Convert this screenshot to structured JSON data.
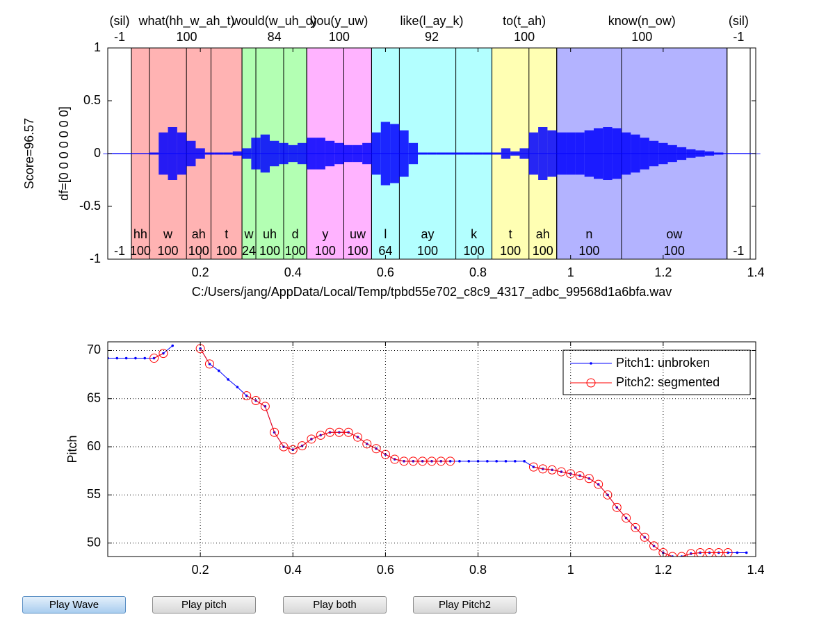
{
  "chart_data": [
    {
      "type": "waveform",
      "ylabel": "Score=96.57",
      "ylabel2": "df=[0 0 0 0 0 0 0]",
      "xlabel": "C:/Users/jang/AppData/Local/Temp/tpbd55e702_c8c9_4317_adbc_99568d1a6bfa.wav",
      "xlim": [
        0,
        1.4
      ],
      "ylim": [
        -1,
        1
      ],
      "xticks": [
        0.2,
        0.4,
        0.6,
        0.8,
        1,
        1.2,
        1.4
      ],
      "yticks": [
        -1,
        -0.5,
        0,
        0.5,
        1
      ],
      "color": "#0000ff",
      "words": [
        {
          "label": "(sil)",
          "score": -1,
          "start": 0,
          "end": 0.051,
          "color": "#ffffff"
        },
        {
          "label": "what(hh_w_ah_t)",
          "score": 100,
          "start": 0.051,
          "end": 0.29,
          "color": "#ffb3b3"
        },
        {
          "label": "would(w_uh_d)",
          "score": 84,
          "start": 0.29,
          "end": 0.43,
          "color": "#b3ffb3"
        },
        {
          "label": "you(y_uw)",
          "score": 100,
          "start": 0.43,
          "end": 0.57,
          "color": "#ffb3ff"
        },
        {
          "label": "like(l_ay_k)",
          "score": 92,
          "start": 0.57,
          "end": 0.83,
          "color": "#b3ffff"
        },
        {
          "label": "to(t_ah)",
          "score": 100,
          "start": 0.83,
          "end": 0.97,
          "color": "#ffffb3"
        },
        {
          "label": "know(n_ow)",
          "score": 100,
          "start": 0.97,
          "end": 1.338,
          "color": "#b3b3ff"
        },
        {
          "label": "(sil)",
          "score": -1,
          "start": 1.338,
          "end": 1.388,
          "color": "#ffffff"
        }
      ],
      "phones": [
        {
          "label": null,
          "score": -1,
          "start": 0,
          "end": 0.051
        },
        {
          "label": "hh",
          "score": 100,
          "start": 0.051,
          "end": 0.09
        },
        {
          "label": "w",
          "score": 100,
          "start": 0.09,
          "end": 0.17
        },
        {
          "label": "ah",
          "score": 100,
          "start": 0.17,
          "end": 0.223
        },
        {
          "label": "t",
          "score": 100,
          "start": 0.223,
          "end": 0.29
        },
        {
          "label": "w",
          "score": 24,
          "start": 0.29,
          "end": 0.32
        },
        {
          "label": "uh",
          "score": 100,
          "start": 0.32,
          "end": 0.38
        },
        {
          "label": "d",
          "score": 100,
          "start": 0.38,
          "end": 0.43
        },
        {
          "label": "y",
          "score": 100,
          "start": 0.43,
          "end": 0.51
        },
        {
          "label": "uw",
          "score": 100,
          "start": 0.51,
          "end": 0.57
        },
        {
          "label": "l",
          "score": 64,
          "start": 0.57,
          "end": 0.63
        },
        {
          "label": "ay",
          "score": 100,
          "start": 0.63,
          "end": 0.752
        },
        {
          "label": "k",
          "score": 100,
          "start": 0.752,
          "end": 0.83
        },
        {
          "label": "t",
          "score": 100,
          "start": 0.83,
          "end": 0.91
        },
        {
          "label": "ah",
          "score": 100,
          "start": 0.91,
          "end": 0.97
        },
        {
          "label": "n",
          "score": 100,
          "start": 0.97,
          "end": 1.11
        },
        {
          "label": "ow",
          "score": 100,
          "start": 1.11,
          "end": 1.338
        },
        {
          "label": null,
          "score": -1,
          "start": 1.338,
          "end": 1.388
        }
      ],
      "x": [
        0,
        0.02,
        0.04,
        0.06,
        0.08,
        0.1,
        0.12,
        0.14,
        0.16,
        0.18,
        0.2,
        0.22,
        0.24,
        0.26,
        0.28,
        0.3,
        0.32,
        0.34,
        0.36,
        0.38,
        0.4,
        0.42,
        0.44,
        0.46,
        0.48,
        0.5,
        0.52,
        0.54,
        0.56,
        0.58,
        0.6,
        0.62,
        0.64,
        0.66,
        0.68,
        0.7,
        0.72,
        0.74,
        0.76,
        0.78,
        0.8,
        0.82,
        0.84,
        0.86,
        0.88,
        0.9,
        0.92,
        0.94,
        0.96,
        0.98,
        1,
        1.02,
        1.04,
        1.06,
        1.08,
        1.1,
        1.12,
        1.14,
        1.16,
        1.18,
        1.2,
        1.22,
        1.24,
        1.26,
        1.28,
        1.3,
        1.32,
        1.34,
        1.36,
        1.38,
        1.4
      ],
      "values": [
        0,
        0,
        0,
        0,
        0,
        0.01,
        0.2,
        0.25,
        0.2,
        0.12,
        0.05,
        0.01,
        0.01,
        0.01,
        0.02,
        0.05,
        0.15,
        0.18,
        0.12,
        0.1,
        0.08,
        0.1,
        0.15,
        0.15,
        0.12,
        0.1,
        0.08,
        0.08,
        0.1,
        0.2,
        0.3,
        0.28,
        0.22,
        0.1,
        0.01,
        0.01,
        0.01,
        0.01,
        0.01,
        0.01,
        0.01,
        0.01,
        0.01,
        0.05,
        0.02,
        0.05,
        0.2,
        0.25,
        0.22,
        0.2,
        0.2,
        0.2,
        0.22,
        0.24,
        0.25,
        0.24,
        0.2,
        0.18,
        0.15,
        0.12,
        0.1,
        0.08,
        0.06,
        0.04,
        0.03,
        0.02,
        0.01,
        0,
        0,
        0,
        0
      ]
    },
    {
      "type": "line",
      "ylabel": "Pitch",
      "xlim": [
        0,
        1.4
      ],
      "ylim": [
        48.6,
        70.9
      ],
      "xticks": [
        0.2,
        0.4,
        0.6,
        0.8,
        1,
        1.2,
        1.4
      ],
      "yticks": [
        50,
        55,
        60,
        65,
        70
      ],
      "grid": true,
      "legend": "northeast",
      "x": [
        0,
        0.02,
        0.04,
        0.06,
        0.08,
        0.1,
        0.12,
        0.14,
        0.16,
        0.18,
        0.2,
        0.22,
        0.24,
        0.26,
        0.28,
        0.3,
        0.32,
        0.34,
        0.36,
        0.38,
        0.4,
        0.42,
        0.44,
        0.46,
        0.48,
        0.5,
        0.52,
        0.54,
        0.56,
        0.58,
        0.6,
        0.62,
        0.64,
        0.66,
        0.68,
        0.7,
        0.72,
        0.74,
        0.76,
        0.78,
        0.8,
        0.82,
        0.84,
        0.86,
        0.88,
        0.9,
        0.92,
        0.94,
        0.96,
        0.98,
        1,
        1.02,
        1.04,
        1.06,
        1.08,
        1.1,
        1.12,
        1.14,
        1.16,
        1.18,
        1.2,
        1.22,
        1.24,
        1.26,
        1.28,
        1.3,
        1.32,
        1.34,
        1.36,
        1.38
      ],
      "series": [
        {
          "name": "Pitch1: unbroken",
          "color": "#0000ff",
          "marker": "dot",
          "values": [
            69.2,
            69.2,
            69.2,
            69.2,
            69.2,
            69.2,
            69.7,
            70.5,
            null,
            null,
            70.2,
            68.6,
            67.9,
            67.0,
            66.2,
            65.3,
            64.8,
            64.2,
            61.5,
            60.0,
            59.7,
            60.1,
            60.8,
            61.2,
            61.5,
            61.5,
            61.5,
            61.0,
            60.3,
            59.8,
            59.2,
            58.7,
            58.5,
            58.5,
            58.5,
            58.5,
            58.5,
            58.5,
            58.5,
            58.5,
            58.5,
            58.5,
            58.5,
            58.5,
            58.5,
            58.5,
            57.9,
            57.7,
            57.6,
            57.4,
            57.2,
            57.0,
            56.7,
            56.1,
            55.0,
            53.7,
            52.6,
            51.6,
            50.6,
            49.7,
            49.0,
            48.6,
            48.6,
            48.9,
            49.0,
            49.0,
            49.0,
            49.0,
            49.0,
            49.0
          ]
        },
        {
          "name": "Pitch2: segmented",
          "color": "#ff0000",
          "marker": "circle",
          "values": [
            null,
            null,
            null,
            null,
            null,
            69.2,
            69.7,
            null,
            null,
            null,
            70.2,
            68.6,
            null,
            null,
            null,
            65.3,
            64.8,
            64.2,
            61.5,
            60.0,
            59.7,
            60.1,
            60.8,
            61.2,
            61.5,
            61.5,
            61.5,
            61.0,
            60.3,
            59.8,
            59.2,
            58.7,
            58.5,
            58.5,
            58.5,
            58.5,
            58.5,
            58.5,
            null,
            null,
            null,
            null,
            null,
            null,
            null,
            null,
            57.9,
            57.7,
            57.6,
            57.4,
            57.2,
            57.0,
            56.7,
            56.1,
            55.0,
            53.7,
            52.6,
            51.6,
            50.6,
            49.7,
            49.0,
            48.6,
            48.6,
            48.9,
            49.0,
            49.0,
            49.0,
            49.0,
            null,
            null
          ]
        }
      ]
    }
  ],
  "buttons": [
    "Play Wave",
    "Play pitch",
    "Play both",
    "Play Pitch2"
  ]
}
